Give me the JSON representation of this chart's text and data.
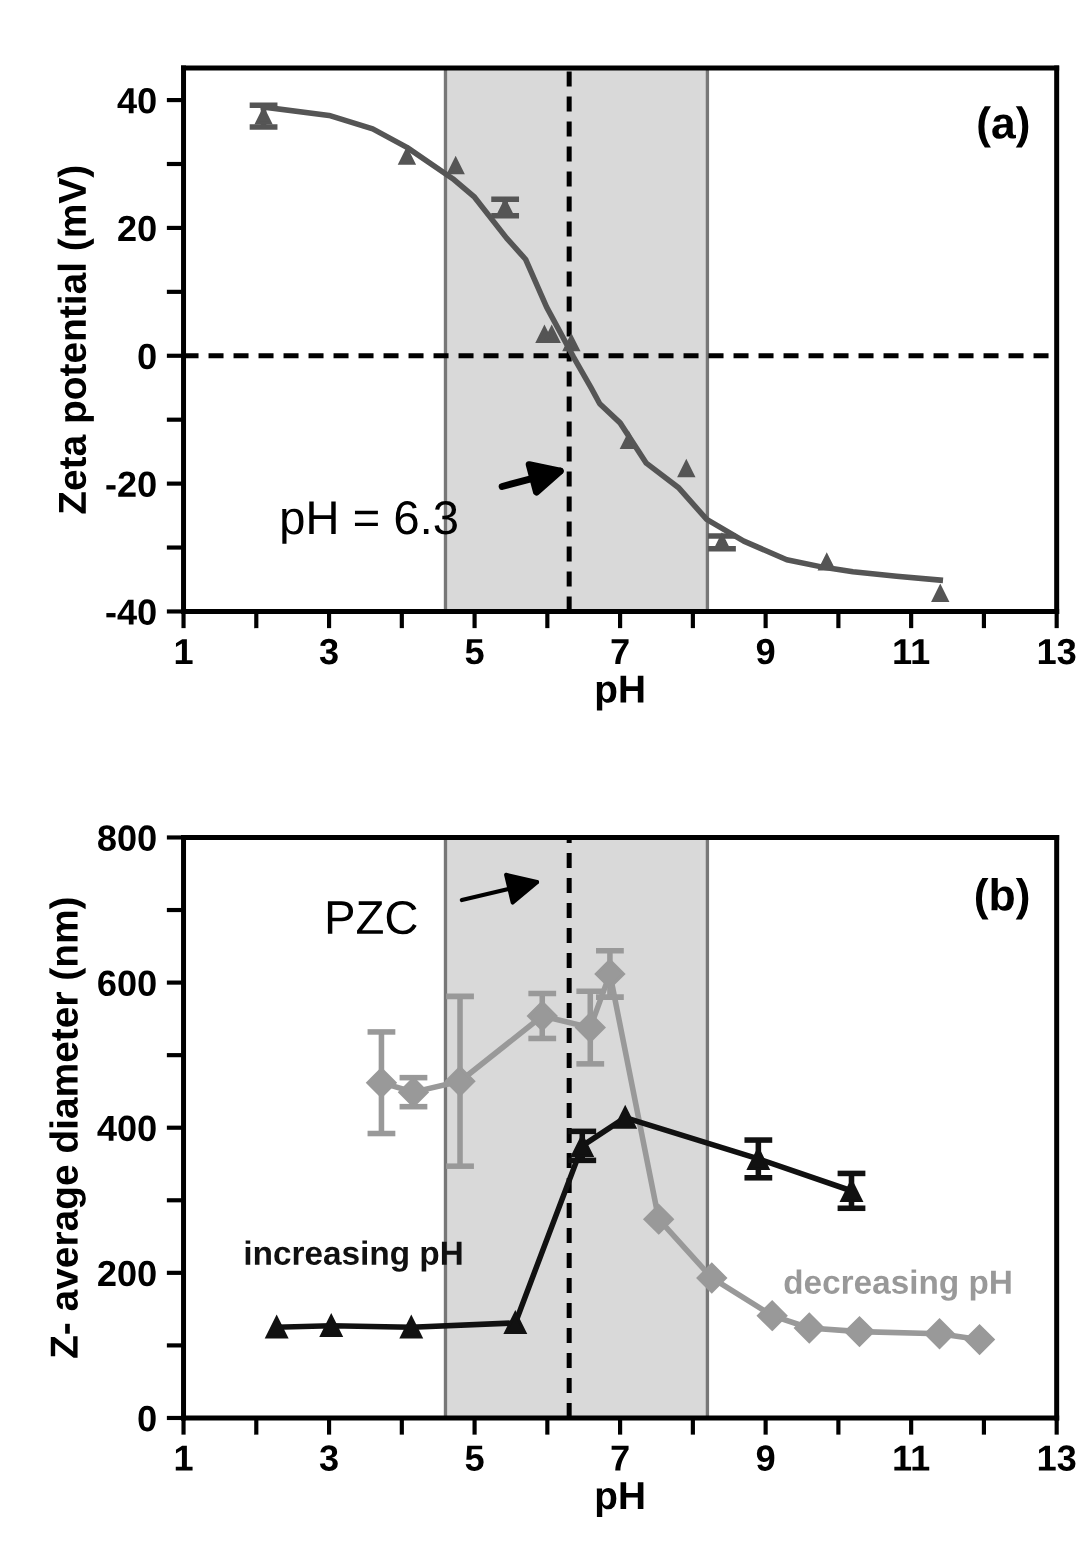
{
  "chart_data": [
    {
      "type": "scatter",
      "xlabel": "pH",
      "ylabel": "Zeta potential (mV)",
      "xlim": [
        1,
        13
      ],
      "ylim": [
        -40,
        45
      ],
      "xticks": [
        1,
        {
          "value": 2,
          "label": null
        },
        3,
        {
          "value": 4,
          "label": null
        },
        5,
        {
          "value": 6,
          "label": null
        },
        7,
        {
          "value": 8,
          "label": null
        },
        9,
        {
          "value": 10,
          "label": null
        },
        11,
        {
          "value": 12,
          "label": null
        },
        13
      ],
      "yticks": [
        -40,
        {
          "value": -30,
          "label": null
        },
        -20,
        {
          "value": -10,
          "label": null
        },
        0,
        {
          "value": 10,
          "label": null
        },
        20,
        {
          "value": 30,
          "label": null
        },
        40
      ],
      "grid": false,
      "marker": "triangle",
      "series": [
        {
          "type": "scatter",
          "color": "#555555",
          "x": [
            2.1,
            4.07,
            4.74,
            5.42,
            5.96,
            6.06,
            6.33,
            7.12,
            7.91,
            8.4,
            9.84,
            11.4
          ],
          "values": [
            37.5,
            31.2,
            29.7,
            23.2,
            3.3,
            3.3,
            2,
            -13.3,
            -17.7,
            -29.2,
            -32.3,
            -37.2
          ],
          "errors": [
            1.7,
            null,
            null,
            1.3,
            null,
            null,
            null,
            null,
            null,
            1,
            null,
            null
          ]
        },
        {
          "type": "line",
          "color": "#555555",
          "line_style": "solid",
          "marker": "none",
          "x": [
            2.1,
            3.0,
            3.6,
            4.07,
            4.7,
            5.0,
            5.44,
            5.7,
            5.99,
            6.36,
            6.6,
            6.72,
            7.0,
            7.36,
            7.8,
            8.19,
            8.7,
            9.29,
            9.8,
            10.2,
            10.8,
            11.4
          ],
          "values": [
            38.9,
            37.6,
            35.5,
            32.6,
            27.7,
            24.8,
            18.4,
            15.1,
            7.6,
            -0.2,
            -5.0,
            -7.5,
            -10.5,
            -16.8,
            -20.6,
            -25.6,
            -29.0,
            -31.9,
            -33.1,
            -33.8,
            -34.5,
            -35.1
          ]
        }
      ],
      "bands": [
        {
          "axis": "x",
          "from": 4.6,
          "to": 8.2,
          "color": "#d9d9d9"
        }
      ],
      "ref_lines": [
        {
          "axis": "x",
          "value": 6.3,
          "line_style": "dashed",
          "color": "#000000"
        },
        {
          "axis": "y",
          "value": 0,
          "line_style": "dashed",
          "color": "#000000"
        }
      ],
      "annotations": [
        "(a)",
        "pH = 6.3"
      ]
    },
    {
      "type": "line",
      "xlabel": "pH",
      "ylabel": "Z- average diameter (nm)",
      "xlim": [
        1,
        13
      ],
      "ylim": [
        0,
        800
      ],
      "xticks": [
        1,
        {
          "value": 2,
          "label": null
        },
        3,
        {
          "value": 4,
          "label": null
        },
        5,
        {
          "value": 6,
          "label": null
        },
        7,
        {
          "value": 8,
          "label": null
        },
        9,
        {
          "value": 10,
          "label": null
        },
        11,
        {
          "value": 12,
          "label": null
        },
        13
      ],
      "yticks": [
        0,
        {
          "value": 100,
          "label": null
        },
        200,
        {
          "value": 300,
          "label": null
        },
        400,
        {
          "value": 500,
          "label": null
        },
        600,
        {
          "value": 700,
          "label": null
        },
        800
      ],
      "grid": false,
      "line_style": "solid",
      "series": [
        {
          "name": "decreasing pH",
          "color": "#999999",
          "marker": "diamond",
          "x": [
            3.72,
            4.16,
            4.8,
            5.93,
            6.59,
            6.86,
            7.53,
            8.26,
            9.09,
            9.6,
            10.29,
            11.39,
            11.94
          ],
          "values": [
            462,
            449,
            464,
            554,
            538,
            612,
            274,
            193,
            141,
            124,
            119,
            116,
            108
          ],
          "errors": [
            70,
            20,
            117,
            31,
            50,
            32,
            null,
            null,
            null,
            null,
            null,
            null,
            null
          ]
        },
        {
          "name": "increasing pH",
          "color": "#111111",
          "marker": "triangle",
          "x": [
            2.28,
            3.03,
            4.13,
            5.56,
            6.48,
            7.07,
            8.9,
            10.18
          ],
          "values": [
            125,
            127,
            125,
            131,
            375,
            414,
            357,
            313
          ],
          "errors": [
            null,
            null,
            null,
            null,
            20,
            null,
            26,
            24
          ]
        }
      ],
      "bands": [
        {
          "axis": "x",
          "from": 4.6,
          "to": 8.2,
          "color": "#d9d9d9"
        }
      ],
      "ref_lines": [
        {
          "axis": "x",
          "value": 6.3,
          "line_style": "dashed",
          "color": "#000000"
        }
      ],
      "annotations": [
        "(b)",
        "PZC"
      ]
    }
  ]
}
